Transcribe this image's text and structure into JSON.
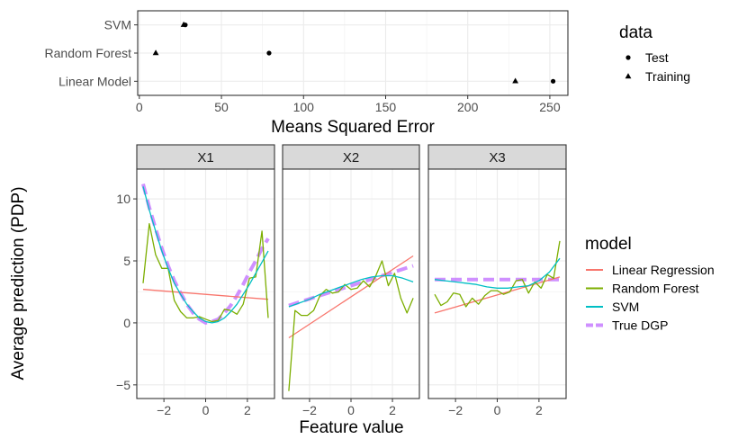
{
  "chart_data": [
    {
      "type": "scatter",
      "categories": [
        "SVM",
        "Random Forest",
        "Linear Model"
      ],
      "xlabel": "Means Squared Error",
      "ylabel": "",
      "xlim": [
        -1,
        261
      ],
      "xticks": [
        0,
        50,
        100,
        150,
        200,
        250
      ],
      "legend": {
        "title": "data",
        "position": "right",
        "items": [
          {
            "name": "Test",
            "shape": "circle"
          },
          {
            "name": "Training",
            "shape": "triangle"
          }
        ]
      },
      "series": [
        {
          "name": "Test",
          "values": [
            {
              "category": "SVM",
              "x": 28
            },
            {
              "category": "Random Forest",
              "x": 79
            },
            {
              "category": "Linear Model",
              "x": 252
            }
          ]
        },
        {
          "name": "Training",
          "values": [
            {
              "category": "SVM",
              "x": 27
            },
            {
              "category": "Random Forest",
              "x": 10
            },
            {
              "category": "Linear Model",
              "x": 229
            }
          ]
        }
      ],
      "grid": true
    },
    {
      "type": "line",
      "xlabel": "Feature value",
      "ylabel": "Average prediction (PDP)",
      "facets": [
        "X1",
        "X2",
        "X3"
      ],
      "xlim": [
        -3.3,
        3.3
      ],
      "ylim": [
        -6.1,
        12.4
      ],
      "xticks": [
        -2,
        0,
        2
      ],
      "yticks": [
        -5,
        0,
        5,
        10
      ],
      "grid": true,
      "legend": {
        "title": "model",
        "position": "right",
        "items": [
          {
            "name": "Linear Regression",
            "color": "#F8766D"
          },
          {
            "name": "Random Forest",
            "color": "#7CAE00"
          },
          {
            "name": "SVM",
            "color": "#00BFC4"
          },
          {
            "name": "True DGP",
            "color": "#C77CFF",
            "dashed": true
          }
        ]
      },
      "series": {
        "X1": [
          {
            "name": "Linear Regression",
            "x": [
              -3.0,
              3.0
            ],
            "y": [
              2.7,
              1.9
            ]
          },
          {
            "name": "Random Forest",
            "x": [
              -3.0,
              -2.7,
              -2.4,
              -2.1,
              -1.8,
              -1.5,
              -1.2,
              -0.9,
              -0.6,
              -0.3,
              0.0,
              0.3,
              0.6,
              0.9,
              1.2,
              1.5,
              1.8,
              2.1,
              2.4,
              2.7,
              3.0
            ],
            "y": [
              3.2,
              8.0,
              5.5,
              4.4,
              4.4,
              1.8,
              0.9,
              0.4,
              0.4,
              0.5,
              0.3,
              0.1,
              0.2,
              1.1,
              1.0,
              0.7,
              1.5,
              3.6,
              3.7,
              7.4,
              0.4
            ]
          },
          {
            "name": "SVM",
            "x": [
              -3.0,
              -2.7,
              -2.4,
              -2.1,
              -1.8,
              -1.5,
              -1.2,
              -0.9,
              -0.6,
              -0.3,
              0.0,
              0.3,
              0.6,
              0.9,
              1.2,
              1.5,
              1.8,
              2.1,
              2.4,
              2.7,
              3.0
            ],
            "y": [
              11.0,
              9.1,
              7.4,
              5.8,
              4.4,
              3.2,
              2.3,
              1.5,
              0.9,
              0.4,
              0.1,
              0.0,
              0.1,
              0.4,
              0.9,
              1.5,
              2.3,
              3.1,
              4.0,
              4.9,
              5.8
            ]
          },
          {
            "name": "True DGP",
            "x": [
              -3.0,
              -2.7,
              -2.4,
              -2.1,
              -1.8,
              -1.5,
              -1.2,
              -0.9,
              -0.6,
              -0.3,
              0.0,
              0.3,
              0.6,
              0.9,
              1.2,
              1.5,
              1.8,
              2.1,
              2.4,
              2.7,
              3.0
            ],
            "y": [
              11.2,
              9.3,
              7.6,
              6.0,
              4.6,
              3.4,
              2.4,
              1.5,
              0.8,
              0.3,
              0.0,
              0.1,
              0.3,
              0.8,
              1.4,
              2.2,
              3.1,
              4.1,
              5.0,
              6.0,
              6.8
            ]
          }
        ],
        "X2": [
          {
            "name": "Linear Regression",
            "x": [
              -3.0,
              3.0
            ],
            "y": [
              -1.2,
              5.4
            ]
          },
          {
            "name": "Random Forest",
            "x": [
              -3.0,
              -2.7,
              -2.4,
              -2.1,
              -1.8,
              -1.5,
              -1.2,
              -0.9,
              -0.6,
              -0.3,
              0.0,
              0.3,
              0.6,
              0.9,
              1.2,
              1.5,
              1.8,
              2.1,
              2.4,
              2.7,
              3.0
            ],
            "y": [
              -5.5,
              1.0,
              0.6,
              0.6,
              1.0,
              2.2,
              2.7,
              2.4,
              2.5,
              3.1,
              2.7,
              2.8,
              3.4,
              2.9,
              3.8,
              5.0,
              3.0,
              4.0,
              2.0,
              0.8,
              2.0
            ]
          },
          {
            "name": "SVM",
            "x": [
              -3.0,
              -2.5,
              -2.0,
              -1.5,
              -1.0,
              -0.5,
              0.0,
              0.5,
              1.0,
              1.5,
              2.0,
              2.5,
              3.0
            ],
            "y": [
              1.3,
              1.6,
              1.9,
              2.3,
              2.6,
              2.9,
              3.2,
              3.5,
              3.7,
              3.8,
              3.8,
              3.6,
              3.3
            ]
          },
          {
            "name": "True DGP",
            "x": [
              -3.0,
              3.0
            ],
            "y": [
              1.4,
              4.6
            ]
          }
        ],
        "X3": [
          {
            "name": "Linear Regression",
            "x": [
              -3.0,
              3.0
            ],
            "y": [
              0.8,
              3.7
            ]
          },
          {
            "name": "Random Forest",
            "x": [
              -3.0,
              -2.7,
              -2.4,
              -2.1,
              -1.8,
              -1.5,
              -1.2,
              -0.9,
              -0.6,
              -0.3,
              0.0,
              0.3,
              0.6,
              0.9,
              1.2,
              1.5,
              1.8,
              2.1,
              2.4,
              2.7,
              3.0
            ],
            "y": [
              2.3,
              1.4,
              1.7,
              2.4,
              2.3,
              1.3,
              2.0,
              1.5,
              2.2,
              2.6,
              2.6,
              2.3,
              2.5,
              3.4,
              3.5,
              2.4,
              3.3,
              2.8,
              3.9,
              3.6,
              6.6
            ]
          },
          {
            "name": "SVM",
            "x": [
              -3.0,
              -2.5,
              -2.0,
              -1.5,
              -1.0,
              -0.5,
              0.0,
              0.5,
              1.0,
              1.5,
              2.0,
              2.5,
              3.0
            ],
            "y": [
              3.5,
              3.4,
              3.3,
              3.2,
              3.1,
              2.9,
              2.8,
              2.8,
              2.9,
              3.0,
              3.4,
              4.1,
              5.2
            ]
          },
          {
            "name": "True DGP",
            "x": [
              -3.0,
              3.0
            ],
            "y": [
              3.5,
              3.5
            ]
          }
        ]
      }
    }
  ]
}
